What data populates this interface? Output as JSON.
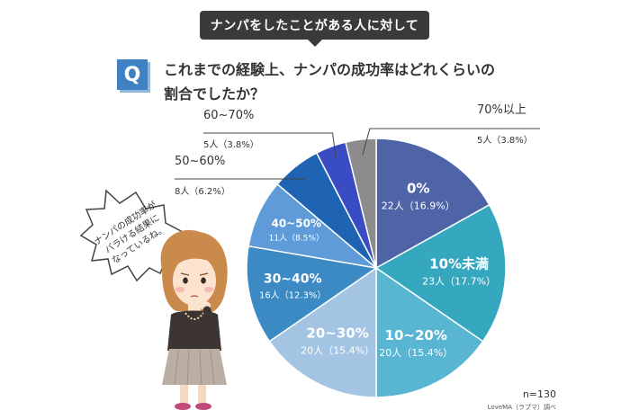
{
  "banner": {
    "text": "ナンパをしたことがある人に対して"
  },
  "question": {
    "badge": "Q",
    "line1": "これまでの経験上、ナンパの成功率はどれくらいの",
    "line2": "割合でしたか？"
  },
  "speech_bubble": {
    "lines": [
      "ナンパの成功率が",
      "バラける結果に",
      "なっているね。"
    ]
  },
  "footer": {
    "n": "n=130",
    "source": "LoveMA（ラブマ）調べ"
  },
  "colors": {
    "banner": "#3a3a3a",
    "badge": "#3f82c4",
    "slices": [
      "#4f64a6",
      "#35a8c0",
      "#59b6d2",
      "#a3c4e2",
      "#3c8ac3",
      "#5f9bd9",
      "#1e64b3",
      "#3a4cc4",
      "#8c8c8c"
    ]
  },
  "chart_data": {
    "type": "pie",
    "title": "",
    "slices": [
      {
        "label": "0%",
        "count": "22人",
        "percent": 16.9,
        "pct_text": "（16.9%）"
      },
      {
        "label": "10%未満",
        "count": "23人",
        "percent": 17.7,
        "pct_text": "（17.7%）"
      },
      {
        "label": "10~20%",
        "count": "20人",
        "percent": 15.4,
        "pct_text": "（15.4%）"
      },
      {
        "label": "20~30%",
        "count": "20人",
        "percent": 15.4,
        "pct_text": "（15.4%）"
      },
      {
        "label": "30~40%",
        "count": "16人",
        "percent": 12.3,
        "pct_text": "（12.3%）"
      },
      {
        "label": "40~50%",
        "count": "11人",
        "percent": 8.5,
        "pct_text": "（8.5%）"
      },
      {
        "label": "50~60%",
        "count": "8人",
        "percent": 6.2,
        "pct_text": "（6.2%）"
      },
      {
        "label": "60~70%",
        "count": "5人",
        "percent": 3.8,
        "pct_text": "（3.8%）"
      },
      {
        "label": "70%以上",
        "count": "5人",
        "percent": 3.8,
        "pct_text": "（3.8%）"
      }
    ]
  }
}
